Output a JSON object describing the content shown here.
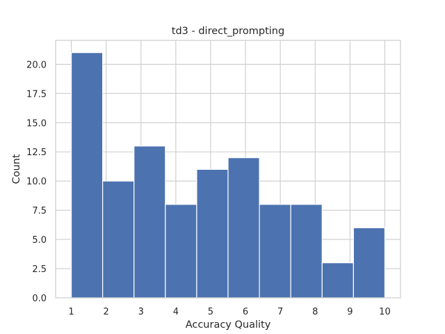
{
  "chart_data": {
    "type": "bar",
    "title": "td3 - direct_prompting",
    "xlabel": "Accuracy Quality",
    "ylabel": "Count",
    "bins": [
      {
        "start": 1.0,
        "end": 1.9,
        "count": 21
      },
      {
        "start": 1.9,
        "end": 2.8,
        "count": 10
      },
      {
        "start": 2.8,
        "end": 3.7,
        "count": 13
      },
      {
        "start": 3.7,
        "end": 4.6,
        "count": 8
      },
      {
        "start": 4.6,
        "end": 5.5,
        "count": 11
      },
      {
        "start": 5.5,
        "end": 6.4,
        "count": 12
      },
      {
        "start": 6.4,
        "end": 7.3,
        "count": 8
      },
      {
        "start": 7.3,
        "end": 8.2,
        "count": 8
      },
      {
        "start": 8.2,
        "end": 9.1,
        "count": 3
      },
      {
        "start": 9.1,
        "end": 10.0,
        "count": 6
      }
    ],
    "xlim": [
      0.55,
      10.45
    ],
    "ylim": [
      0,
      22.05
    ],
    "xticks": [
      1,
      2,
      3,
      4,
      5,
      6,
      7,
      8,
      9,
      10
    ],
    "xtick_labels": [
      "1",
      "2",
      "3",
      "4",
      "5",
      "6",
      "7",
      "8",
      "9",
      "10"
    ],
    "yticks": [
      0,
      2.5,
      5,
      7.5,
      10,
      12.5,
      15,
      17.5,
      20
    ],
    "ytick_labels": [
      "0.0",
      "2.5",
      "5.0",
      "7.5",
      "10.0",
      "12.5",
      "15.0",
      "17.5",
      "20.0"
    ],
    "grid": true,
    "bar_color": "#4c72b0",
    "edge_color": "#ffffff",
    "grid_color": "#cccccc",
    "text_color": "#262626"
  }
}
